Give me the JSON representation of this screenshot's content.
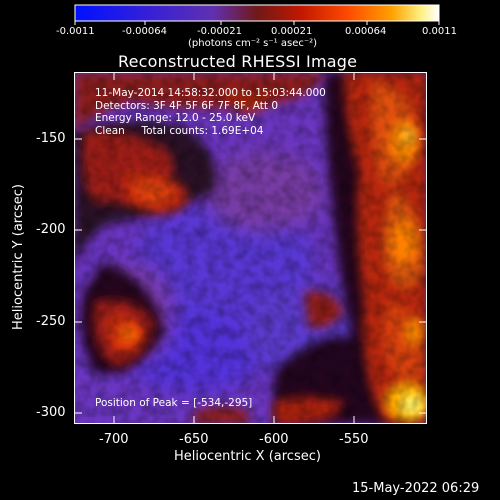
{
  "colorbar": {
    "ticks": [
      "-0.0011",
      "-0.00064",
      "-0.00021",
      "0.00021",
      "0.00064",
      "0.0011"
    ],
    "unit_label": "(photons cm⁻² s⁻¹ asec⁻²)"
  },
  "image": {
    "title": "Reconstructed RHESSI Image",
    "time_range": "11-May-2014 14:58:32.000 to 15:03:44.000",
    "detectors": "Detectors: 3F 4F 5F 6F 7F 8F, Att 0",
    "energy_range": "Energy Range: 12.0 - 25.0 keV",
    "method_counts": "Clean     Total counts: 1.69E+04",
    "peak_position": "Position of Peak = [-534,-295]"
  },
  "axes": {
    "xlabel": "Heliocentric X (arcsec)",
    "ylabel": "Heliocentric Y (arcsec)",
    "xticks": [
      "-700",
      "-650",
      "-600",
      "-550"
    ],
    "yticks": [
      "-150",
      "-200",
      "-250",
      "-300"
    ]
  },
  "footer": {
    "date_stamp": "15-May-2022 06:29"
  },
  "colors": {
    "background": "#000000",
    "colormap": [
      "#1010ff",
      "#4030d0",
      "#7040b0",
      "#a02010",
      "#e04000",
      "#ff9000",
      "#ffff90",
      "#ffffff"
    ]
  }
}
